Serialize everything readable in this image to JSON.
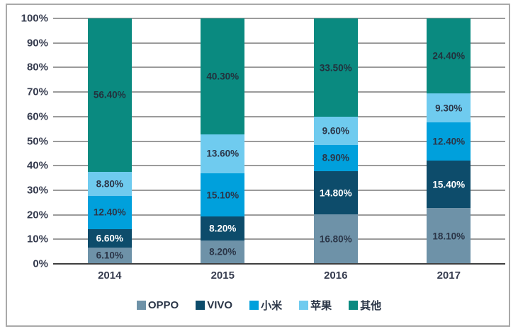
{
  "chart_data": {
    "type": "bar",
    "variant": "stacked-100-percent",
    "title": "",
    "xlabel": "",
    "ylabel": "",
    "categories": [
      "2014",
      "2015",
      "2016",
      "2017"
    ],
    "series": [
      {
        "name": "OPPO",
        "color": "#6e92a8",
        "label_color": "#2b3648",
        "values": [
          6.1,
          8.2,
          16.8,
          18.1
        ],
        "labels": [
          "6.10%",
          "8.20%",
          "16.80%",
          "18.10%"
        ]
      },
      {
        "name": "VIVO",
        "color": "#0d4c6b",
        "label_color": "#ffffff",
        "values": [
          6.6,
          8.2,
          14.8,
          15.4
        ],
        "labels": [
          "6.60%",
          "8.20%",
          "14.80%",
          "15.40%"
        ]
      },
      {
        "name": "小米",
        "color": "#00a0dc",
        "label_color": "#2b3648",
        "values": [
          12.4,
          15.1,
          8.9,
          12.4
        ],
        "labels": [
          "12.40%",
          "15.10%",
          "8.90%",
          "12.40%"
        ]
      },
      {
        "name": "苹果",
        "color": "#6fcbef",
        "label_color": "#2b3648",
        "values": [
          8.8,
          13.6,
          9.6,
          9.3
        ],
        "labels": [
          "8.80%",
          "13.60%",
          "9.60%",
          "9.30%"
        ]
      },
      {
        "name": "其他",
        "color": "#0a8a80",
        "label_color": "#22313d",
        "values": [
          56.4,
          40.3,
          33.5,
          24.4
        ],
        "labels": [
          "56.40%",
          "40.30%",
          "33.50%",
          "24.40%"
        ]
      }
    ],
    "y_ticks": [
      "100%",
      "90%",
      "80%",
      "70%",
      "60%",
      "50%",
      "40%",
      "30%",
      "20%",
      "10%",
      "0%"
    ],
    "ylim": [
      0,
      100
    ],
    "grid": true,
    "legend_position": "bottom",
    "legend_entries": [
      "OPPO",
      "VIVO",
      "小米",
      "苹果",
      "其他"
    ]
  }
}
